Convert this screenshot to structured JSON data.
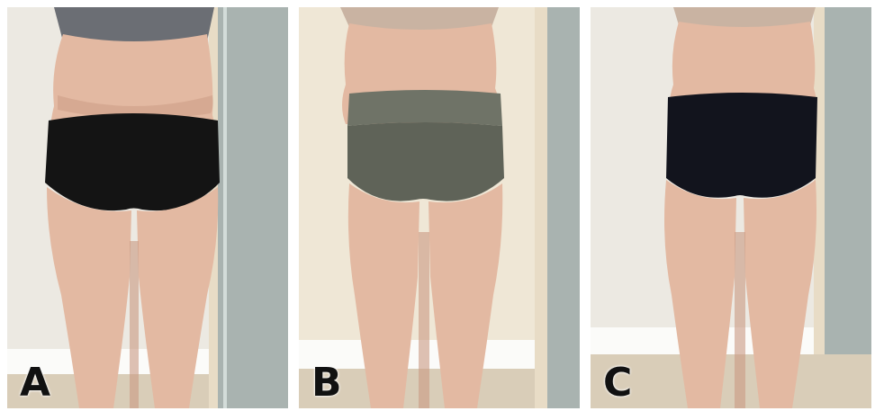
{
  "panels": [
    {
      "label": "A",
      "garment_color": "#141414"
    },
    {
      "label": "B",
      "garment_color": "#5f6358"
    },
    {
      "label": "C",
      "garment_color": "#12141d"
    }
  ],
  "colors": {
    "wall": "#ece9e2",
    "skin": "#e3b9a2",
    "skin_shadow": "#c99a82",
    "baseboard": "#fbfbf9",
    "floor": "#d9cdb8",
    "door_frame": "#e8dcc6",
    "glass": "#a9b3b0",
    "top_garment": "#6b6e74"
  }
}
